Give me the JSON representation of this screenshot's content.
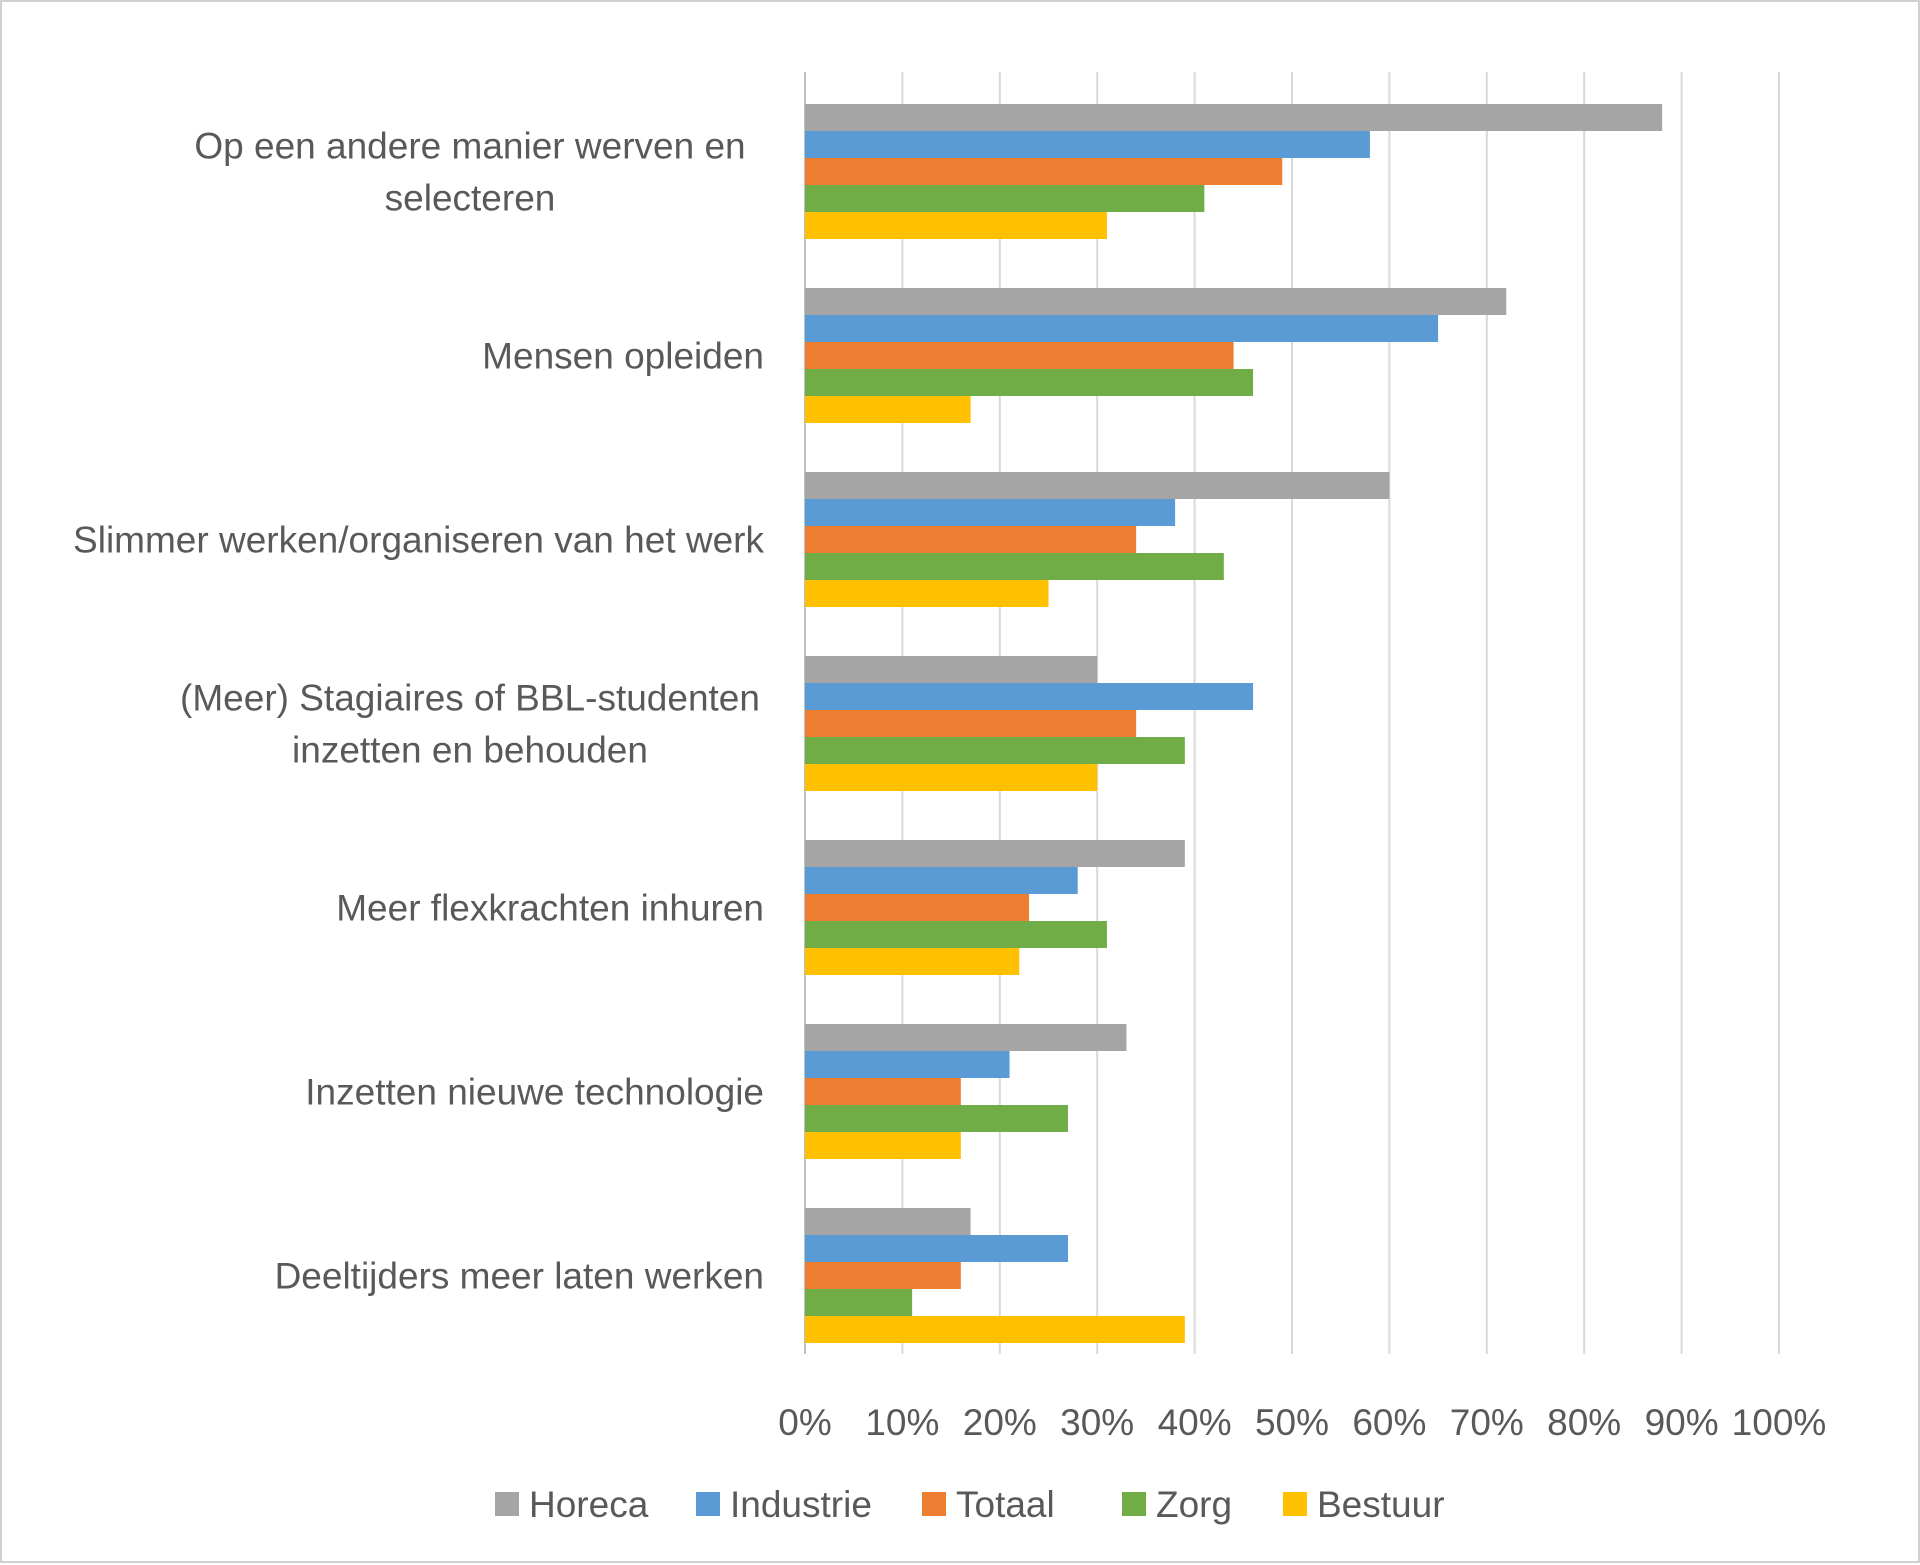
{
  "chart_data": {
    "type": "bar",
    "orientation": "horizontal",
    "title": "",
    "xlabel": "",
    "ylabel": "",
    "xlim": [
      0,
      100
    ],
    "x_ticks": [
      "0%",
      "10%",
      "20%",
      "30%",
      "40%",
      "50%",
      "60%",
      "70%",
      "80%",
      "90%",
      "100%"
    ],
    "grid": true,
    "legend_position": "bottom",
    "categories": [
      [
        "Op een andere manier werven en",
        "selecteren"
      ],
      [
        "Mensen opleiden"
      ],
      [
        "Slimmer werken/organiseren van het werk"
      ],
      [
        "(Meer) Stagiaires of BBL-studenten",
        "inzetten en behouden"
      ],
      [
        "Meer flexkrachten inhuren"
      ],
      [
        "Inzetten nieuwe technologie"
      ],
      [
        "Deeltijders meer laten werken"
      ]
    ],
    "series": [
      {
        "name": "Horeca",
        "color": "#A5A5A5",
        "values": [
          88,
          72,
          60,
          30,
          39,
          33,
          17
        ]
      },
      {
        "name": "Industrie",
        "color": "#5B9BD5",
        "values": [
          58,
          65,
          38,
          46,
          28,
          21,
          27
        ]
      },
      {
        "name": "Totaal",
        "color": "#ED7D31",
        "values": [
          49,
          44,
          34,
          34,
          23,
          16,
          16
        ]
      },
      {
        "name": "Zorg",
        "color": "#70AD47",
        "values": [
          41,
          46,
          43,
          39,
          31,
          27,
          11
        ]
      },
      {
        "name": "Bestuur",
        "color": "#FFC000",
        "values": [
          31,
          17,
          25,
          30,
          22,
          16,
          39
        ]
      }
    ]
  }
}
